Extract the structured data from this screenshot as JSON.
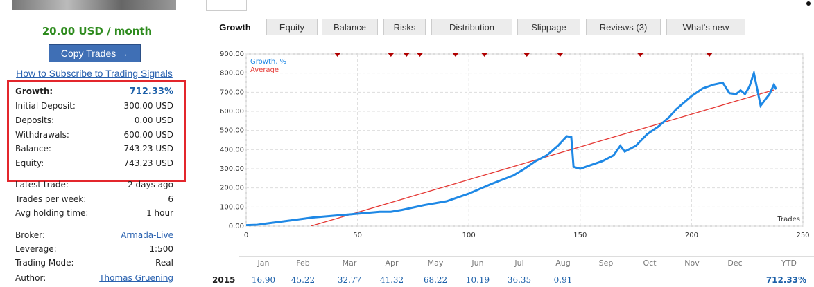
{
  "sidebar": {
    "price": "20.00 USD / month",
    "button": "Copy Trades →",
    "link": "How to Subscribe to Trading Signals",
    "stats": [
      {
        "label": "Growth:",
        "value": "712.33%",
        "highlight": true
      },
      {
        "label": "Initial Deposit:",
        "value": "300.00 USD"
      },
      {
        "label": "Deposits:",
        "value": "0.00 USD"
      },
      {
        "label": "Withdrawals:",
        "value": "600.00 USD"
      },
      {
        "label": "Balance:",
        "value": "743.23 USD"
      },
      {
        "label": "Equity:",
        "value": "743.23 USD"
      }
    ],
    "info": [
      {
        "label": "Latest trade:",
        "value": "2 days ago"
      },
      {
        "label": "Trades per week:",
        "value": "6"
      },
      {
        "label": "Avg holding time:",
        "value": "1 hour"
      },
      {
        "label": "Broker:",
        "value": "Armada-Live",
        "link": true
      },
      {
        "label": "Leverage:",
        "value": "1:500"
      },
      {
        "label": "Trading Mode:",
        "value": "Real"
      },
      {
        "label": "Author:",
        "value": "Thomas Gruening",
        "link": true
      }
    ]
  },
  "tabs": [
    "Growth",
    "Equity",
    "Balance",
    "Risks",
    "Distribution",
    "Slippage",
    "Reviews (3)",
    "What's new"
  ],
  "chart_data": {
    "type": "line",
    "xlabel": "Trades",
    "grid": true,
    "series": [
      {
        "name": "Growth, %",
        "color": "#1e88e5",
        "x": [
          0,
          5,
          10,
          20,
          30,
          40,
          50,
          60,
          65,
          70,
          80,
          90,
          100,
          110,
          120,
          125,
          130,
          135,
          140,
          142,
          144,
          146,
          147,
          150,
          155,
          160,
          165,
          168,
          170,
          175,
          180,
          185,
          190,
          193,
          197,
          200,
          205,
          210,
          214,
          217,
          220,
          222,
          224,
          226,
          228,
          231,
          235,
          237,
          238
        ],
        "values": [
          5,
          7,
          15,
          30,
          45,
          55,
          65,
          75,
          75,
          85,
          110,
          130,
          170,
          220,
          265,
          300,
          340,
          370,
          420,
          445,
          470,
          465,
          310,
          300,
          320,
          340,
          370,
          420,
          390,
          420,
          480,
          520,
          570,
          610,
          650,
          680,
          720,
          740,
          750,
          695,
          690,
          710,
          690,
          730,
          800,
          630,
          690,
          740,
          715
        ]
      },
      {
        "name": "Average",
        "color": "#e53935",
        "x": [
          29,
          237
        ],
        "values": [
          0,
          712
        ]
      }
    ],
    "markers": {
      "color": "#b00000",
      "x": [
        41,
        65,
        72,
        78,
        94,
        107,
        126,
        141,
        177,
        208
      ]
    },
    "xlim": [
      0,
      250
    ],
    "xticks": [
      0,
      50,
      100,
      150,
      200,
      250
    ],
    "ylim": [
      0,
      900
    ],
    "yticks": [
      {
        "value": 0,
        "label": "0.00"
      },
      {
        "value": 100,
        "label": "100.00"
      },
      {
        "value": 200,
        "label": "200.00"
      },
      {
        "value": 300,
        "label": "300.00"
      },
      {
        "value": 400,
        "label": "400.00"
      },
      {
        "value": 500,
        "label": "500.00"
      },
      {
        "value": 600,
        "label": "600.00"
      },
      {
        "value": 700,
        "label": "700.00"
      },
      {
        "value": 800,
        "label": "800.00"
      },
      {
        "value": 900,
        "label": "900.00"
      }
    ]
  },
  "table": {
    "months": [
      "Jan",
      "Feb",
      "Mar",
      "Apr",
      "May",
      "Jun",
      "Jul",
      "Aug",
      "Sep",
      "Oct",
      "Nov",
      "Dec"
    ],
    "ytd_header": "YTD",
    "rows": [
      {
        "year": "2015",
        "values": [
          "16.90",
          "45.22",
          "32.77",
          "41.32",
          "68.22",
          "10.19",
          "36.35",
          "0.91",
          null,
          null,
          null,
          null
        ],
        "ytd": "712.33%"
      }
    ]
  }
}
